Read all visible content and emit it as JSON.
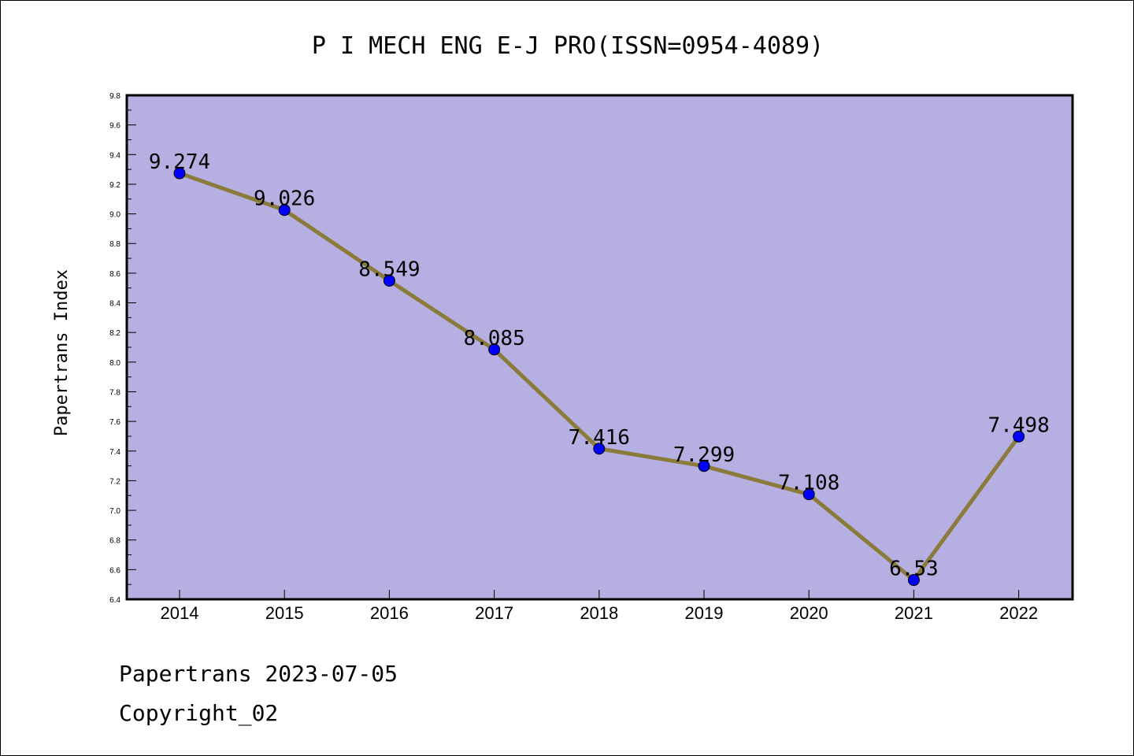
{
  "footer": {
    "line1": "Papertrans 2023-07-05",
    "line2": "Copyright_02"
  },
  "colors": {
    "plot_background": "#b5afe2",
    "line": "#8b7b3a",
    "marker": "#0000ff"
  },
  "chart_data": {
    "type": "line",
    "title": "P I MECH ENG E-J PRO(ISSN=0954-4089)",
    "ylabel": "Papertrans Index",
    "xlabel": "",
    "categories": [
      "2014",
      "2015",
      "2016",
      "2017",
      "2018",
      "2019",
      "2020",
      "2021",
      "2022"
    ],
    "values": [
      9.274,
      9.026,
      8.549,
      8.085,
      7.416,
      7.299,
      7.108,
      6.53,
      7.498
    ],
    "data_labels": [
      "9.274",
      "9.026",
      "8.549",
      "8.085",
      "7.416",
      "7.299",
      "7.108",
      "6.53",
      "7.498"
    ],
    "ylim": [
      6.4,
      9.8
    ],
    "yticks": [
      "6.4",
      "6.6",
      "6.8",
      "7.0",
      "7.2",
      "7.4",
      "7.6",
      "7.8",
      "8.0",
      "8.2",
      "8.4",
      "8.6",
      "8.8",
      "9.0",
      "9.2",
      "9.4",
      "9.6",
      "9.8"
    ],
    "grid": false,
    "legend": "none"
  }
}
